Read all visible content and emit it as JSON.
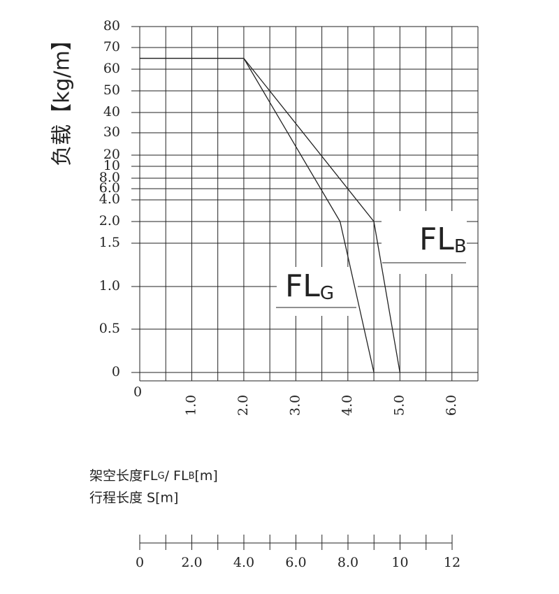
{
  "chart_data": {
    "type": "line",
    "y_label": "负载【kg/m】",
    "xlim": [
      0,
      6.5
    ],
    "xticks": [
      0,
      {
        "value": 1,
        "label": "1.0"
      },
      {
        "value": 2,
        "label": "2.0"
      },
      {
        "value": 3,
        "label": "3.0"
      },
      {
        "value": 4,
        "label": "4.0"
      },
      {
        "value": 5,
        "label": "5.0"
      },
      {
        "value": 6,
        "label": "6.0"
      }
    ],
    "x_minor_ticks": [
      0,
      0.5,
      1,
      1.5,
      2,
      2.5,
      3,
      3.5,
      4,
      4.5,
      5,
      5.5,
      6,
      6.5
    ],
    "ylim": [
      0,
      80
    ],
    "yticks": [
      80,
      70,
      60,
      50,
      40,
      30,
      20,
      10,
      {
        "value": 8,
        "label": "8.0"
      },
      {
        "value": 6,
        "label": "6.0"
      },
      {
        "value": 4,
        "label": "4.0"
      },
      {
        "value": 2,
        "label": "2.0"
      },
      1.5,
      {
        "value": 1,
        "label": "1.0"
      },
      0.5,
      0
    ],
    "grid": true,
    "color": "#222222",
    "series": [
      {
        "x": [
          0,
          2.0,
          3.85,
          4.5
        ],
        "values": [
          65,
          65,
          2.0,
          0
        ]
      },
      {
        "x": [
          0,
          2.0,
          4.5,
          5.0
        ],
        "values": [
          65,
          65,
          2.0,
          0
        ]
      }
    ],
    "annotations": [
      {
        "text": "FL",
        "sub": "G"
      },
      {
        "text": "FL",
        "sub": "B"
      }
    ],
    "x_label": [
      "架空长度FL",
      "G",
      "/ FL",
      "B",
      "[m]"
    ],
    "x_label_2": "行程长度 S[m]",
    "stroke_scale": {
      "lim": [
        0,
        12
      ],
      "ticks": [
        0,
        {
          "value": 2,
          "label": "2.0"
        },
        {
          "value": 4,
          "label": "4.0"
        },
        {
          "value": 6,
          "label": "6.0"
        },
        {
          "value": 8,
          "label": "8.0"
        },
        10,
        12
      ],
      "minor_ticks": [
        0,
        1,
        2,
        3,
        4,
        5,
        6,
        7,
        8,
        9,
        10,
        11,
        12
      ]
    }
  }
}
